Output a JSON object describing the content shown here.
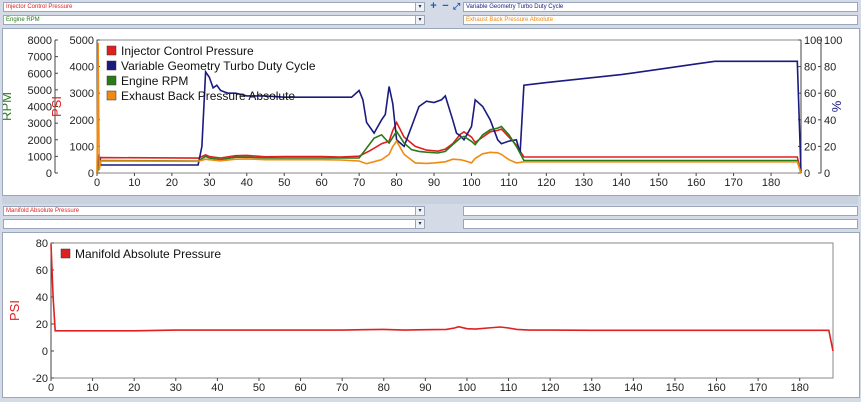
{
  "top_controls": {
    "left_dropdown_1": "Injector Control Pressure",
    "left_dropdown_2": "Engine RPM",
    "right_dropdown_1": "Variable Geometry Turbo Duty Cycle",
    "right_dropdown_2": "Exhaust Back Pressure Absolute",
    "tool_plus": "+",
    "tool_minus": "−",
    "tool_fit": "⤢"
  },
  "bottom_controls": {
    "left_dropdown_1": "Manifold Absolute Pressure",
    "left_dropdown_2": "",
    "right_dropdown_1": "",
    "right_dropdown_2": ""
  },
  "colors": {
    "icp": "#e02020",
    "vgt": "#1a1a80",
    "rpm": "#2a7a1a",
    "ebp": "#f08a10",
    "map": "#e02020"
  },
  "chart_data": [
    {
      "type": "line",
      "x_ticks": [
        "0",
        "10",
        "20",
        "30",
        "40",
        "50",
        "60",
        "70",
        "80",
        "90",
        "100",
        "110",
        "120",
        "130",
        "140",
        "150",
        "160",
        "170",
        "180"
      ],
      "xlim": [
        0,
        188
      ],
      "axes": {
        "rpm": {
          "label": "RPM",
          "ticks": [
            "0",
            "1000",
            "2000",
            "3000",
            "4000",
            "5000",
            "6000",
            "7000",
            "8000"
          ],
          "ylim": [
            0,
            8000
          ]
        },
        "psi": {
          "label": "PSI",
          "ticks": [
            "0",
            "1000",
            "2000",
            "3000",
            "4000",
            "5000"
          ],
          "ylim": [
            0,
            5000
          ]
        },
        "pct": {
          "label": "%",
          "ticks": [
            "0",
            "20",
            "40",
            "60",
            "80",
            "100"
          ],
          "ylim": [
            0,
            100
          ]
        },
        "pct_right": {
          "ticks": [
            "0",
            "20",
            "40",
            "60",
            "80",
            "100"
          ]
        }
      },
      "legend_position": "top-left",
      "series": [
        {
          "name": "Injector Control Pressure",
          "axis": "psi",
          "color_key": "icp",
          "x": [
            0,
            1,
            27,
            29,
            30,
            33,
            37,
            40,
            45,
            50,
            55,
            60,
            65,
            70,
            73,
            76,
            78,
            79,
            80,
            82,
            85,
            88,
            91,
            93,
            95,
            97,
            98,
            100,
            101,
            103,
            105,
            107,
            108,
            110,
            112,
            114,
            120,
            130,
            140,
            150,
            160,
            170,
            180,
            187,
            188
          ],
          "y": [
            0,
            580,
            560,
            680,
            620,
            560,
            650,
            660,
            610,
            620,
            620,
            620,
            600,
            630,
            850,
            1100,
            1200,
            1600,
            1900,
            1350,
            1000,
            860,
            820,
            900,
            1100,
            1450,
            1550,
            1350,
            1150,
            1350,
            1550,
            1600,
            1650,
            1350,
            1050,
            600,
            600,
            600,
            600,
            600,
            600,
            600,
            600,
            600,
            0
          ]
        },
        {
          "name": "Variable Geometry Turbo Duty Cycle",
          "axis": "pct",
          "color_key": "vgt",
          "x": [
            0,
            0.5,
            1,
            27,
            28,
            29,
            30,
            31,
            32,
            33,
            35,
            37,
            40,
            45,
            50,
            55,
            60,
            65,
            68,
            70,
            71,
            72,
            74,
            76,
            77,
            78,
            79,
            80,
            82,
            84,
            86,
            88,
            90,
            92,
            93,
            95,
            96,
            97,
            98,
            100,
            101,
            103,
            105,
            107,
            108,
            110,
            112,
            113,
            114,
            120,
            130,
            140,
            150,
            160,
            165,
            170,
            180,
            187,
            188
          ],
          "y": [
            0,
            14,
            6,
            6,
            20,
            76,
            72,
            64,
            66,
            62,
            60,
            60,
            58,
            58,
            57,
            57,
            57,
            57,
            57,
            62,
            55,
            38,
            30,
            40,
            44,
            65,
            52,
            25,
            20,
            35,
            50,
            54,
            53,
            55,
            58,
            40,
            30,
            28,
            25,
            35,
            55,
            50,
            40,
            25,
            22,
            24,
            25,
            15,
            66,
            68,
            71,
            74,
            78,
            82,
            84,
            84,
            84,
            84,
            0
          ]
        },
        {
          "name": "Engine RPM",
          "axis": "rpm",
          "color_key": "rpm",
          "x": [
            0,
            1,
            27,
            29,
            30,
            33,
            37,
            40,
            45,
            50,
            55,
            60,
            65,
            70,
            72,
            74,
            76,
            78,
            80,
            82,
            84,
            86,
            88,
            91,
            93,
            95,
            97,
            98,
            100,
            101,
            103,
            105,
            107,
            108,
            110,
            112,
            114,
            120,
            130,
            140,
            150,
            160,
            170,
            180,
            187,
            188
          ],
          "y": [
            0,
            750,
            720,
            1000,
            900,
            800,
            950,
            950,
            900,
            900,
            900,
            900,
            900,
            900,
            1500,
            2100,
            2300,
            1800,
            2500,
            1800,
            1400,
            1300,
            1250,
            1200,
            1300,
            1700,
            2100,
            2200,
            1900,
            1700,
            2300,
            2600,
            2700,
            2800,
            2300,
            1600,
            750,
            750,
            750,
            750,
            750,
            750,
            750,
            750,
            750,
            0
          ]
        },
        {
          "name": "Exhaust Back Pressure Absolute",
          "axis": "psi",
          "color_key": "ebp",
          "x": [
            0,
            0.3,
            0.6,
            1,
            27,
            29,
            30,
            33,
            37,
            40,
            45,
            50,
            55,
            60,
            65,
            70,
            72,
            76,
            78,
            79,
            80,
            82,
            85,
            88,
            90,
            93,
            95,
            97,
            98,
            100,
            101,
            103,
            105,
            107,
            108,
            110,
            112,
            114,
            120,
            130,
            140,
            150,
            160,
            170,
            180,
            187,
            188
          ],
          "y": [
            0,
            4900,
            100,
            450,
            440,
            520,
            500,
            460,
            520,
            530,
            500,
            500,
            500,
            500,
            490,
            450,
            350,
            500,
            700,
            1000,
            1200,
            700,
            380,
            360,
            380,
            420,
            520,
            500,
            470,
            380,
            550,
            720,
            780,
            760,
            700,
            500,
            380,
            420,
            420,
            420,
            420,
            420,
            420,
            420,
            420,
            420,
            0
          ]
        }
      ]
    },
    {
      "type": "line",
      "x_ticks": [
        "0",
        "10",
        "20",
        "30",
        "40",
        "50",
        "60",
        "70",
        "80",
        "90",
        "100",
        "110",
        "120",
        "130",
        "140",
        "150",
        "160",
        "170",
        "180"
      ],
      "xlim": [
        0,
        188
      ],
      "axes": {
        "psi": {
          "label": "PSI",
          "ticks": [
            "-20",
            "0",
            "20",
            "40",
            "60",
            "80"
          ],
          "ylim": [
            -20,
            80
          ]
        }
      },
      "legend_position": "top-left",
      "series": [
        {
          "name": "Manifold Absolute Pressure",
          "axis": "psi",
          "color_key": "map",
          "x": [
            0,
            0.5,
            1,
            10,
            20,
            30,
            40,
            50,
            60,
            70,
            75,
            80,
            85,
            90,
            95,
            97,
            98,
            100,
            102,
            105,
            108,
            110,
            112,
            115,
            120,
            130,
            140,
            150,
            160,
            170,
            180,
            187,
            188
          ],
          "y": [
            79,
            40,
            15,
            15,
            15,
            15.5,
            15.5,
            15.5,
            15.5,
            15.5,
            15.8,
            16,
            15.5,
            15.8,
            16,
            17,
            18,
            16.5,
            16.2,
            17,
            17.8,
            17,
            16,
            15.5,
            15.5,
            15.3,
            15.3,
            15.3,
            15.3,
            15.3,
            15.3,
            15.3,
            0
          ]
        }
      ]
    }
  ]
}
